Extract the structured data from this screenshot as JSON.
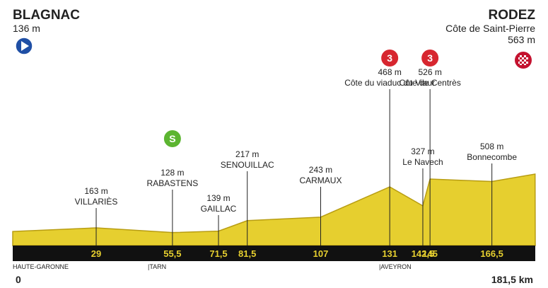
{
  "start": {
    "name": "BLAGNAC",
    "elevation": {
      "value": 136,
      "label": "136 m"
    },
    "km": 0
  },
  "finish": {
    "name": "RODEZ",
    "climb": "Côte de Saint-Pierre",
    "elevation": {
      "value": 563,
      "label": "563 m"
    },
    "km": {
      "value": 181.5,
      "label": "181,5 km"
    }
  },
  "points": [
    {
      "name": "VILLARIÈS",
      "elevation": {
        "value": 163,
        "label": "163 m"
      },
      "km": 29
    },
    {
      "name": "RABASTENS",
      "elevation": {
        "value": 128,
        "label": "128 m"
      },
      "km": {
        "value": 55.5,
        "label": "55,5"
      },
      "sprint": "S"
    },
    {
      "name": "GAILLAC",
      "elevation": {
        "value": 139,
        "label": "139 m"
      },
      "km": {
        "value": 71.5,
        "label": "71,5"
      }
    },
    {
      "name": "SENOUILLAC",
      "elevation": {
        "value": 217,
        "label": "217 m"
      },
      "km": {
        "value": 81.5,
        "label": "81,5"
      }
    },
    {
      "name": "CARMAUX",
      "elevation": {
        "value": 243,
        "label": "243 m"
      },
      "km": 107
    },
    {
      "name": "Côte du viaduc du Viaur",
      "elevation": {
        "value": 468,
        "label": "468 m"
      },
      "km": 131,
      "category": 3
    },
    {
      "name": "Le Navech",
      "elevation": {
        "value": 327,
        "label": "327 m"
      },
      "km": {
        "value": 142.5,
        "label": "142,5"
      }
    },
    {
      "name": "Côte de Centrès",
      "elevation": {
        "value": 526,
        "label": "526 m"
      },
      "km": 145,
      "category": 3
    },
    {
      "name": "Bonnecombe",
      "elevation": {
        "value": 508,
        "label": "508 m"
      },
      "km": {
        "value": 166.5,
        "label": "166,5"
      }
    }
  ],
  "regions": [
    "HAUTE-GARONNE",
    "|TARN",
    "|AVEYRON"
  ]
}
